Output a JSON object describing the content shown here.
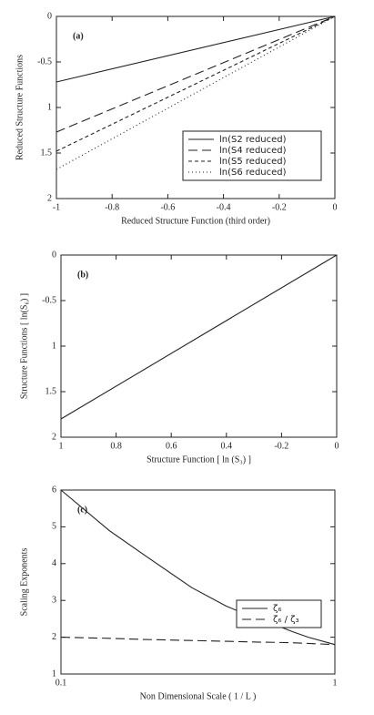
{
  "chart_data": [
    {
      "type": "line",
      "label": "(a)",
      "x_label": "Reduced Structure Function (third order)",
      "y_label": "Reduced Structure Functions",
      "x": [
        -1,
        0
      ],
      "series": [
        {
          "name": "ln(S2 reduced)",
          "color": "#222222",
          "linestyle": "solid",
          "values": [
            -0.72,
            0
          ]
        },
        {
          "name": "ln(S4 reduced)",
          "color": "#222222",
          "linestyle": "dashed",
          "values": [
            -1.27,
            0
          ]
        },
        {
          "name": "ln(S5 reduced)",
          "color": "#222222",
          "linestyle": "short-dashed",
          "values": [
            -1.48,
            0
          ]
        },
        {
          "name": "ln(S6 reduced)",
          "color": "#222222",
          "linestyle": "dotted",
          "values": [
            -1.68,
            0
          ]
        }
      ],
      "xlim": [
        -1,
        0
      ],
      "xticks": [
        -1,
        -0.8,
        -0.6,
        -0.4,
        -0.2,
        0
      ],
      "ylim": [
        -2,
        0
      ],
      "yticks": [
        0,
        -0.5,
        {
          "value": -1,
          "label": "1"
        },
        {
          "value": -1.5,
          "label": "1.5"
        },
        {
          "value": -2,
          "label": "2"
        }
      ],
      "legend": "lower right"
    },
    {
      "type": "line",
      "label": "(b)",
      "x_label": "Structure Function [ ln (S₃) ]",
      "y_label": "Structure Functions [ ln(S₆) ]",
      "x": [
        -1,
        0
      ],
      "series": [
        {
          "color": "#222222",
          "linestyle": "solid",
          "values": [
            -1.8,
            0
          ]
        }
      ],
      "xlim": [
        -1,
        0
      ],
      "xticks": [
        {
          "value": -1,
          "label": "1"
        },
        {
          "value": -0.8,
          "label": "0.8"
        },
        {
          "value": -0.6,
          "label": "0.6"
        },
        {
          "value": -0.4,
          "label": "0.4"
        },
        -0.2,
        0
      ],
      "ylim": [
        -2,
        0
      ],
      "yticks": [
        0,
        -0.5,
        {
          "value": -1,
          "label": "1"
        },
        {
          "value": -1.5,
          "label": "1.5"
        },
        {
          "value": -2,
          "label": "2"
        }
      ]
    },
    {
      "type": "line",
      "label": "(c)",
      "x_label": "Non Dimensional Scale ( 1 / L )",
      "y_label": "Scaling Exponents",
      "x": [
        0.1,
        0.15,
        0.2,
        0.3,
        0.4,
        0.5,
        0.6,
        0.7,
        0.8,
        1
      ],
      "series": [
        {
          "name": "ζ₆",
          "color": "#222222",
          "linestyle": "solid",
          "values": [
            6,
            4.9,
            4.25,
            3.35,
            2.85,
            2.55,
            2.35,
            2.15,
            2.0,
            1.8
          ]
        },
        {
          "name": "ζ₆ / ζ₃",
          "color": "#222222",
          "linestyle": "dashed",
          "values": [
            2.0,
            1.97,
            1.94,
            1.91,
            1.89,
            1.87,
            1.86,
            1.85,
            1.83,
            1.8
          ]
        }
      ],
      "xscale": "log",
      "xlim": [
        0.1,
        1
      ],
      "xticks": [
        0.1,
        1
      ],
      "ylim": [
        1,
        6
      ],
      "yticks": [
        1,
        2,
        3,
        4,
        5,
        6
      ],
      "legend": "center right"
    }
  ]
}
